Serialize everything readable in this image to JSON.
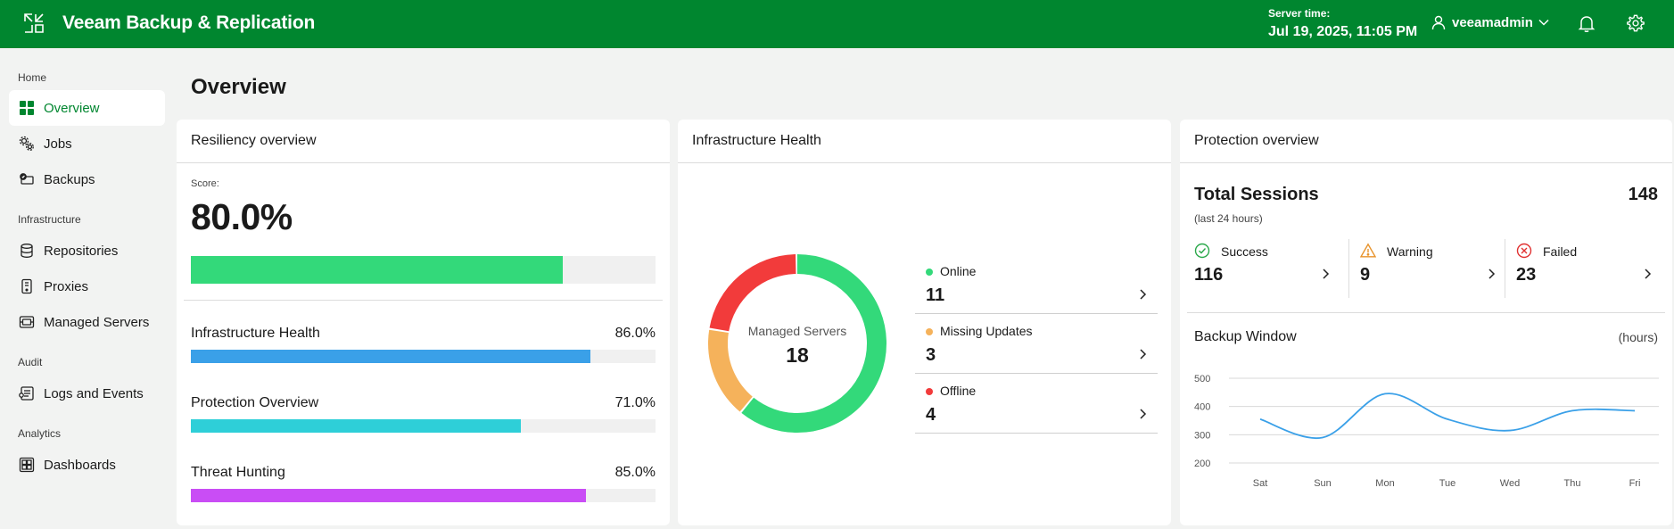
{
  "header": {
    "app_title": "Veeam Backup & Replication",
    "server_time_label": "Server time:",
    "server_time_value": "Jul 19, 2025, 11:05 PM",
    "username": "veeamadmin",
    "brand_color": "#00862f"
  },
  "sidebar": {
    "sections": {
      "home": "Home",
      "infrastructure": "Infrastructure",
      "audit": "Audit",
      "analytics": "Analytics"
    },
    "items": [
      {
        "label": "Overview",
        "icon": "dashboard-grid-icon",
        "active": true
      },
      {
        "label": "Jobs",
        "icon": "gears-icon"
      },
      {
        "label": "Backups",
        "icon": "backup-icon"
      },
      {
        "label": "Repositories",
        "icon": "database-icon"
      },
      {
        "label": "Proxies",
        "icon": "server-icon"
      },
      {
        "label": "Managed Servers",
        "icon": "managed-servers-icon"
      },
      {
        "label": "Logs and Events",
        "icon": "logs-icon"
      },
      {
        "label": "Dashboards",
        "icon": "dashboards-icon"
      }
    ]
  },
  "page": {
    "title": "Overview"
  },
  "resiliency": {
    "title": "Resiliency overview",
    "score_label": "Score:",
    "score_value": "80.0%",
    "score_fraction": 0.8,
    "score_color": "#33d97a",
    "metrics": [
      {
        "label": "Infrastructure Health",
        "value": "86.0%",
        "fraction": 0.86,
        "color": "#3aa0e8"
      },
      {
        "label": "Protection Overview",
        "value": "71.0%",
        "fraction": 0.71,
        "color": "#2ecfd8"
      },
      {
        "label": "Threat Hunting",
        "value": "85.0%",
        "fraction": 0.85,
        "color": "#c94df5"
      }
    ]
  },
  "infra": {
    "title": "Infrastructure Health",
    "donut_label": "Managed Servers",
    "donut_total": "18",
    "statuses": [
      {
        "label": "Online",
        "count": "11",
        "value": 11,
        "color": "#33d97a"
      },
      {
        "label": "Missing Updates",
        "count": "3",
        "value": 3,
        "color": "#f5b25b"
      },
      {
        "label": "Offline",
        "count": "4",
        "value": 4,
        "color": "#f23b3b"
      }
    ]
  },
  "protection": {
    "title": "Protection overview",
    "total_label": "Total Sessions",
    "total_sub": "(last 24 hours)",
    "total_count": "148",
    "sessions": [
      {
        "label": "Success",
        "value": "116",
        "icon": "check-circle-icon",
        "color": "#2aa84a"
      },
      {
        "label": "Warning",
        "value": "9",
        "icon": "warning-triangle-icon",
        "color": "#e8932b"
      },
      {
        "label": "Failed",
        "value": "23",
        "icon": "x-circle-icon",
        "color": "#e03030"
      }
    ],
    "backup_window_title": "Backup Window",
    "backup_window_unit": "(hours)"
  },
  "chart_data": {
    "type": "line",
    "title": "Backup Window",
    "ylabel": "(hours)",
    "categories": [
      "Sat",
      "Sun",
      "Mon",
      "Tue",
      "Wed",
      "Thu",
      "Fri"
    ],
    "values": [
      355,
      290,
      445,
      355,
      315,
      385,
      385
    ],
    "yticks": [
      500,
      400,
      300,
      200
    ],
    "ylim": [
      200,
      500
    ],
    "grid": true,
    "color": "#3aa0e8"
  }
}
